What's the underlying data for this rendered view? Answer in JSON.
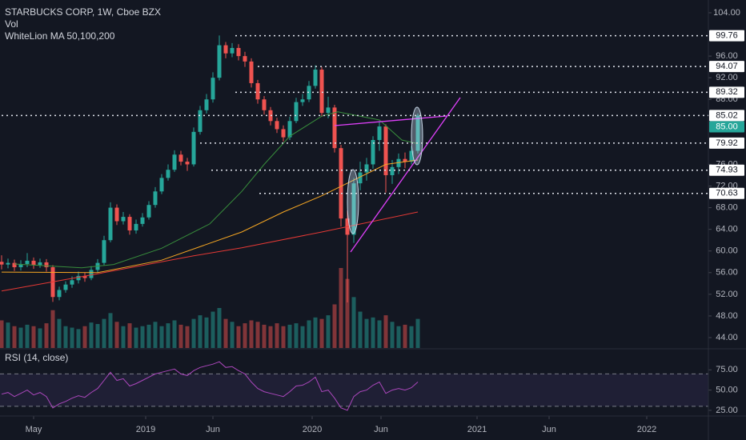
{
  "chart_data": {
    "type": "candlestick",
    "title": "STARBUCKS CORP, 1W, Cboe BZX",
    "volume_label": "Vol",
    "ma_label": "WhiteLion MA 50,100,200",
    "up_color": "#26a69a",
    "down_color": "#ef5350",
    "grid": false,
    "x": [
      0,
      2,
      4,
      6,
      8,
      10,
      12,
      14,
      16,
      18,
      20,
      22,
      24,
      26,
      28,
      30,
      32,
      34,
      36,
      38,
      40,
      42,
      44,
      46,
      48,
      50,
      52,
      54,
      56,
      58,
      60,
      62,
      64,
      66,
      68,
      70,
      72,
      74,
      76,
      78,
      80,
      82,
      84,
      86,
      88,
      90,
      92,
      94,
      96,
      98,
      100,
      102,
      104,
      106,
      108,
      110,
      112,
      114,
      116,
      118,
      120,
      122,
      124,
      126,
      128,
      130
    ],
    "open": [
      58.0,
      57.5,
      57.8,
      57.0,
      57.6,
      58.2,
      57.4,
      57.9,
      57.0,
      51.5,
      52.8,
      53.8,
      54.6,
      55.4,
      55.0,
      56.5,
      57.8,
      62.0,
      68.0,
      65.5,
      66.3,
      63.8,
      65.0,
      66.2,
      68.5,
      71.0,
      73.5,
      75.0,
      77.8,
      76.5,
      76.0,
      82.0,
      86.0,
      88.0,
      92.0,
      98.0,
      96.5,
      97.5,
      96.0,
      95.0,
      91.0,
      88.0,
      86.0,
      84.0,
      82.5,
      81.0,
      84.0,
      87.5,
      88.0,
      90.5,
      93.5,
      85.5,
      86.5,
      79.0,
      66.0,
      63.0,
      72.5,
      74.5,
      76.0,
      80.5,
      83.0,
      74.0,
      75.5,
      77.0,
      76.5,
      78.5
    ],
    "high": [
      59.2,
      58.6,
      58.4,
      58.3,
      59.6,
      58.8,
      58.6,
      58.5,
      57.4,
      53.4,
      54.4,
      55.3,
      56.2,
      56.0,
      57.2,
      58.5,
      62.8,
      69.0,
      68.6,
      67.2,
      66.8,
      65.8,
      67.0,
      69.2,
      71.8,
      74.2,
      76.0,
      78.6,
      78.5,
      77.2,
      82.8,
      86.8,
      89.0,
      93.0,
      99.8,
      98.6,
      98.4,
      98.2,
      96.8,
      95.6,
      91.6,
      88.6,
      86.6,
      84.6,
      83.2,
      84.8,
      88.3,
      89.0,
      91.4,
      94.3,
      94.0,
      88.5,
      87.0,
      79.6,
      67.5,
      73.5,
      76.5,
      77.2,
      81.2,
      84.0,
      83.4,
      76.8,
      78.0,
      78.2,
      79.4,
      85.4
    ],
    "low": [
      56.6,
      56.8,
      56.3,
      56.4,
      57.0,
      56.7,
      56.9,
      56.2,
      50.6,
      50.9,
      52.3,
      53.2,
      54.0,
      54.3,
      54.6,
      56.0,
      57.4,
      61.6,
      64.8,
      64.9,
      63.0,
      63.2,
      64.5,
      65.8,
      68.0,
      70.5,
      73.0,
      74.6,
      75.8,
      74.8,
      75.6,
      81.5,
      85.4,
      87.4,
      91.5,
      95.6,
      95.8,
      95.2,
      94.0,
      90.2,
      87.2,
      85.2,
      83.2,
      81.8,
      80.2,
      80.5,
      83.6,
      86.8,
      87.5,
      90.0,
      84.8,
      84.5,
      78.2,
      64.5,
      50.5,
      61.5,
      71.2,
      73.0,
      75.2,
      78.5,
      70.8,
      72.4,
      74.2,
      75.3,
      76.0,
      78.0
    ],
    "close": [
      57.5,
      57.8,
      57.0,
      57.6,
      58.2,
      57.4,
      57.9,
      57.0,
      51.5,
      52.8,
      53.8,
      54.6,
      55.4,
      55.0,
      56.5,
      57.8,
      62.0,
      68.0,
      65.5,
      66.3,
      63.8,
      65.0,
      66.2,
      68.5,
      71.0,
      73.5,
      75.0,
      77.8,
      76.5,
      76.0,
      82.0,
      86.0,
      88.0,
      92.0,
      98.0,
      96.5,
      97.5,
      96.0,
      95.0,
      91.0,
      88.0,
      86.0,
      84.0,
      82.5,
      81.0,
      84.0,
      87.5,
      88.0,
      90.5,
      93.5,
      85.5,
      86.5,
      79.0,
      66.0,
      63.0,
      72.5,
      74.5,
      76.0,
      80.5,
      83.0,
      74.0,
      75.5,
      77.0,
      76.5,
      78.5,
      85.0
    ],
    "volume": [
      38,
      35,
      30,
      28,
      32,
      30,
      27,
      34,
      52,
      40,
      30,
      28,
      26,
      30,
      35,
      33,
      40,
      48,
      36,
      30,
      34,
      28,
      30,
      32,
      36,
      30,
      34,
      38,
      32,
      30,
      40,
      45,
      42,
      50,
      55,
      40,
      36,
      30,
      34,
      38,
      36,
      32,
      30,
      34,
      30,
      32,
      34,
      30,
      38,
      42,
      40,
      45,
      60,
      110,
      95,
      70,
      50,
      40,
      42,
      38,
      45,
      36,
      30,
      32,
      30,
      40
    ],
    "moving_averages": [
      {
        "color": "#388e3c",
        "x": [
          4,
          25,
          35,
          50,
          65,
          75,
          82,
          90,
          100,
          105,
          118,
          125,
          130
        ],
        "values": [
          57.6,
          56.9,
          57.5,
          60.5,
          65,
          71,
          76,
          81.2,
          84.9,
          85.7,
          84.2,
          80.5,
          79.8
        ]
      },
      {
        "color": "#f5a623",
        "x": [
          0,
          30,
          50,
          75,
          88,
          100,
          110,
          120,
          130
        ],
        "values": [
          56.1,
          56,
          58.3,
          63.5,
          67.2,
          70.2,
          73.1,
          76,
          76.8
        ]
      },
      {
        "color": "#e53935",
        "x": [
          0,
          30,
          60,
          75,
          100,
          130
        ],
        "values": [
          52.6,
          55.8,
          59.1,
          60.6,
          63.5,
          67.2
        ]
      }
    ],
    "xlim": [
      -0.5,
      220.75
    ],
    "xticks": [
      {
        "value": 10,
        "label": "May"
      },
      {
        "value": 45,
        "label": "2019"
      },
      {
        "value": 66,
        "label": "Jun"
      },
      {
        "value": 97,
        "label": "2020"
      },
      {
        "value": 118.5,
        "label": "Jun"
      },
      {
        "value": 148.5,
        "label": "2021"
      },
      {
        "value": 171,
        "label": "Jun"
      },
      {
        "value": 201.5,
        "label": "2022"
      }
    ],
    "ylim": [
      42.08,
      106.36
    ],
    "yticks": [
      {
        "value": 104,
        "label": "104.00"
      },
      {
        "value": 96,
        "label": "96.00"
      },
      {
        "value": 92,
        "label": "92.00"
      },
      {
        "value": 88,
        "label": "88.00"
      },
      {
        "value": 76,
        "label": "76.00"
      },
      {
        "value": 72,
        "label": "72.00"
      },
      {
        "value": 68,
        "label": "68.00"
      },
      {
        "value": 64,
        "label": "64.00"
      },
      {
        "value": 60,
        "label": "60.00"
      },
      {
        "value": 56,
        "label": "56.00"
      },
      {
        "value": 52,
        "label": "52.00"
      },
      {
        "value": 48,
        "label": "48.00"
      },
      {
        "value": 44,
        "label": "44.00"
      }
    ],
    "levels": [
      99.76,
      94.07,
      89.32,
      85.02,
      79.92,
      74.93,
      70.63
    ],
    "level_starts": [
      73,
      80,
      73,
      0,
      62,
      65.5,
      80.5
    ],
    "last_price": {
      "value": 85,
      "label": "85.00"
    },
    "rsi": {
      "label": "RSI (14, close)",
      "color": "#ab47bc",
      "values": [
        45,
        47,
        42,
        46,
        50,
        44,
        47,
        42,
        28,
        33,
        36,
        40,
        43,
        41,
        47,
        52,
        62,
        72,
        62,
        64,
        55,
        58,
        62,
        66,
        70,
        72,
        74,
        76,
        70,
        68,
        74,
        78,
        80,
        82,
        85,
        78,
        79,
        74,
        70,
        60,
        52,
        48,
        46,
        44,
        42,
        48,
        55,
        56,
        60,
        66,
        48,
        50,
        40,
        28,
        25,
        42,
        48,
        50,
        56,
        60,
        46,
        50,
        52,
        50,
        53,
        60
      ],
      "ylim": [
        18,
        100
      ],
      "yticks": [
        {
          "value": 75,
          "label": "75.00"
        },
        {
          "value": 50,
          "label": "50.00"
        },
        {
          "value": 25,
          "label": "25.00"
        }
      ],
      "bands": [
        70,
        30
      ]
    }
  }
}
